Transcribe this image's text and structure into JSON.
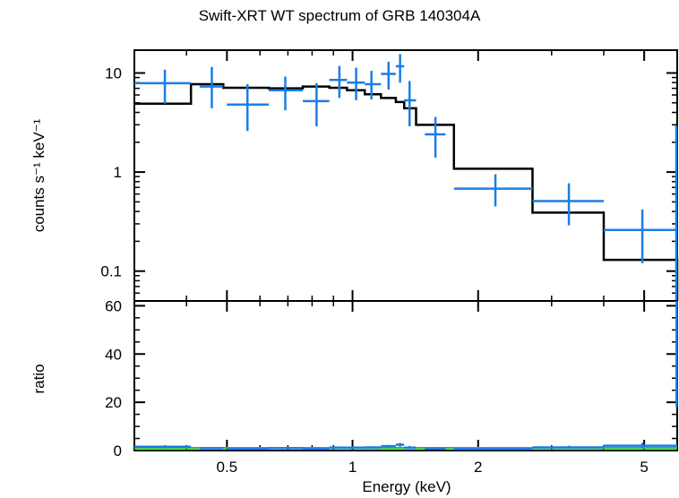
{
  "chart_data": [
    {
      "type": "scatter",
      "title": "Swift-XRT WT spectrum of GRB 140304A",
      "xlabel": "Energy (keV)",
      "ylabel": "counts s⁻¹ keV⁻¹",
      "xscale": "log",
      "yscale": "log",
      "xlim": [
        0.3,
        6.0
      ],
      "ylim": [
        0.05,
        17
      ],
      "xticks": [
        {
          "v": 0.5,
          "label": "0.5"
        },
        {
          "v": 1,
          "label": "1"
        },
        {
          "v": 2,
          "label": "2"
        },
        {
          "v": 5,
          "label": "5"
        }
      ],
      "yticks": [
        {
          "v": 0.1,
          "label": "0.1"
        },
        {
          "v": 1,
          "label": "1"
        },
        {
          "v": 10,
          "label": "10"
        }
      ],
      "colors": {
        "data": "#1a7ee6",
        "model": "#000000"
      },
      "data_points": [
        {
          "x": 0.355,
          "xlo": 0.3,
          "xhi": 0.41,
          "y": 7.9,
          "ylo": 4.9,
          "yhi": 10.8
        },
        {
          "x": 0.46,
          "xlo": 0.43,
          "xhi": 0.49,
          "y": 7.3,
          "ylo": 4.4,
          "yhi": 11.5
        },
        {
          "x": 0.56,
          "xlo": 0.5,
          "xhi": 0.63,
          "y": 4.8,
          "ylo": 2.6,
          "yhi": 7.7
        },
        {
          "x": 0.69,
          "xlo": 0.63,
          "xhi": 0.76,
          "y": 6.7,
          "ylo": 4.2,
          "yhi": 9.2
        },
        {
          "x": 0.82,
          "xlo": 0.76,
          "xhi": 0.88,
          "y": 5.2,
          "ylo": 2.9,
          "yhi": 7.9
        },
        {
          "x": 0.93,
          "xlo": 0.88,
          "xhi": 0.97,
          "y": 8.5,
          "ylo": 5.6,
          "yhi": 11.8
        },
        {
          "x": 1.02,
          "xlo": 0.97,
          "xhi": 1.07,
          "y": 8.0,
          "ylo": 5.3,
          "yhi": 11.3
        },
        {
          "x": 1.11,
          "xlo": 1.07,
          "xhi": 1.17,
          "y": 7.7,
          "ylo": 5.4,
          "yhi": 10.5
        },
        {
          "x": 1.22,
          "xlo": 1.17,
          "xhi": 1.27,
          "y": 9.8,
          "ylo": 6.8,
          "yhi": 13.0
        },
        {
          "x": 1.3,
          "xlo": 1.27,
          "xhi": 1.33,
          "y": 11.7,
          "ylo": 8.0,
          "yhi": 15.5
        },
        {
          "x": 1.37,
          "xlo": 1.33,
          "xhi": 1.42,
          "y": 5.3,
          "ylo": 2.9,
          "yhi": 8.3
        },
        {
          "x": 1.58,
          "xlo": 1.49,
          "xhi": 1.67,
          "y": 2.4,
          "ylo": 1.4,
          "yhi": 3.6
        },
        {
          "x": 2.2,
          "xlo": 1.75,
          "xhi": 2.7,
          "y": 0.68,
          "ylo": 0.45,
          "yhi": 0.95
        },
        {
          "x": 3.3,
          "xlo": 2.7,
          "xhi": 4.0,
          "y": 0.51,
          "ylo": 0.29,
          "yhi": 0.77
        },
        {
          "x": 4.95,
          "xlo": 4.0,
          "xhi": 6.0,
          "y": 0.26,
          "ylo": 0.12,
          "yhi": 0.42
        }
      ],
      "model_steps": [
        {
          "x0": 0.3,
          "x1": 0.41,
          "y": 4.9
        },
        {
          "x0": 0.41,
          "x1": 0.49,
          "y": 7.7
        },
        {
          "x0": 0.49,
          "x1": 0.63,
          "y": 7.1
        },
        {
          "x0": 0.63,
          "x1": 0.76,
          "y": 7.0
        },
        {
          "x0": 0.76,
          "x1": 0.88,
          "y": 7.3
        },
        {
          "x0": 0.88,
          "x1": 0.97,
          "y": 7.1
        },
        {
          "x0": 0.97,
          "x1": 1.07,
          "y": 6.7
        },
        {
          "x0": 1.07,
          "x1": 1.17,
          "y": 6.1
        },
        {
          "x0": 1.17,
          "x1": 1.27,
          "y": 5.6
        },
        {
          "x0": 1.27,
          "x1": 1.33,
          "y": 5.1
        },
        {
          "x0": 1.33,
          "x1": 1.42,
          "y": 4.4
        },
        {
          "x0": 1.42,
          "x1": 1.75,
          "y": 3.0
        },
        {
          "x0": 1.75,
          "x1": 2.7,
          "y": 1.08
        },
        {
          "x0": 2.7,
          "x1": 4.0,
          "y": 0.39
        },
        {
          "x0": 4.0,
          "x1": 6.0,
          "y": 0.13
        }
      ]
    },
    {
      "type": "scatter",
      "ylabel": "ratio",
      "xlabel": "Energy (keV)",
      "xscale": "log",
      "xlim": [
        0.3,
        6.0
      ],
      "ylim": [
        0,
        62
      ],
      "yticks": [
        {
          "v": 0,
          "label": "0"
        },
        {
          "v": 20,
          "label": "20"
        },
        {
          "v": 40,
          "label": "40"
        },
        {
          "v": 60,
          "label": "60"
        }
      ],
      "reference_line": 1,
      "colors": {
        "data": "#1a7ee6",
        "reference": "#22c92a"
      },
      "data_points": [
        {
          "x": 0.355,
          "xlo": 0.3,
          "xhi": 0.41,
          "y": 1.6,
          "ylo": 1.0,
          "yhi": 2.2
        },
        {
          "x": 0.46,
          "xlo": 0.43,
          "xhi": 0.49,
          "y": 0.95,
          "ylo": 0.6,
          "yhi": 1.5
        },
        {
          "x": 0.56,
          "xlo": 0.5,
          "xhi": 0.63,
          "y": 0.7,
          "ylo": 0.4,
          "yhi": 1.1
        },
        {
          "x": 0.69,
          "xlo": 0.63,
          "xhi": 0.76,
          "y": 0.96,
          "ylo": 0.6,
          "yhi": 1.3
        },
        {
          "x": 0.82,
          "xlo": 0.76,
          "xhi": 0.88,
          "y": 0.7,
          "ylo": 0.4,
          "yhi": 1.1
        },
        {
          "x": 0.93,
          "xlo": 0.88,
          "xhi": 0.97,
          "y": 1.2,
          "ylo": 0.8,
          "yhi": 1.7
        },
        {
          "x": 1.02,
          "xlo": 0.97,
          "xhi": 1.07,
          "y": 1.2,
          "ylo": 0.8,
          "yhi": 1.7
        },
        {
          "x": 1.11,
          "xlo": 1.07,
          "xhi": 1.17,
          "y": 1.3,
          "ylo": 0.9,
          "yhi": 1.7
        },
        {
          "x": 1.22,
          "xlo": 1.17,
          "xhi": 1.27,
          "y": 1.8,
          "ylo": 1.2,
          "yhi": 2.3
        },
        {
          "x": 1.3,
          "xlo": 1.27,
          "xhi": 1.33,
          "y": 2.4,
          "ylo": 1.6,
          "yhi": 3.1
        },
        {
          "x": 1.37,
          "xlo": 1.33,
          "xhi": 1.42,
          "y": 1.2,
          "ylo": 0.7,
          "yhi": 1.9
        },
        {
          "x": 1.58,
          "xlo": 1.49,
          "xhi": 1.67,
          "y": 0.8,
          "ylo": 0.5,
          "yhi": 1.2
        },
        {
          "x": 2.2,
          "xlo": 1.75,
          "xhi": 2.7,
          "y": 0.63,
          "ylo": 0.4,
          "yhi": 0.9
        },
        {
          "x": 3.3,
          "xlo": 2.7,
          "xhi": 4.0,
          "y": 1.3,
          "ylo": 0.7,
          "yhi": 2.0
        },
        {
          "x": 4.95,
          "xlo": 4.0,
          "xhi": 6.0,
          "y": 2.0,
          "ylo": 0.9,
          "yhi": 3.2
        },
        {
          "x": 5.98,
          "xlo": 5.97,
          "xhi": 6.0,
          "y": 40,
          "ylo": 18,
          "yhi": 62
        }
      ]
    }
  ]
}
